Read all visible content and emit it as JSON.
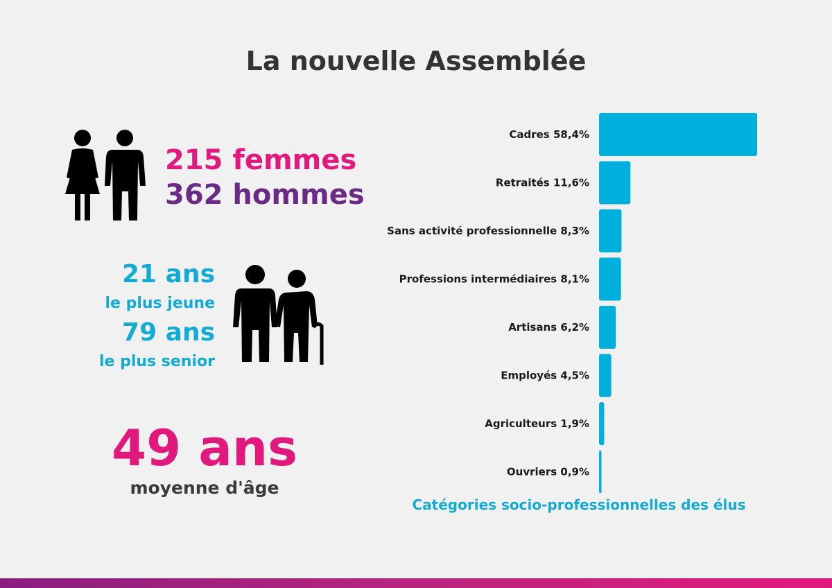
{
  "title": "La nouvelle Assemblée",
  "gender": {
    "women": "215 femmes",
    "men": "362 hommes",
    "icon": "man-woman-icon"
  },
  "age": {
    "youngest_value": "21 ans",
    "youngest_label": "le plus jeune",
    "oldest_value": "79 ans",
    "oldest_label": "le plus senior",
    "icon": "elderly-couple-icon"
  },
  "average_age": {
    "value": "49 ans",
    "label": "moyenne d'âge"
  },
  "colors": {
    "pink": "#e2197d",
    "purple": "#6a2a86",
    "blue": "#12abd3",
    "bar": "#00b0dc"
  },
  "chart_data": {
    "type": "bar",
    "orientation": "horizontal",
    "caption": "Catégories socio-professionnelles des élus",
    "categories": [
      "Cadres 58,4%",
      "Retraités 11,6%",
      "Sans activité professionnelle 8,3%",
      "Professions intermédiaires 8,1%",
      "Artisans 6,2%",
      "Employés 4,5%",
      "Agriculteurs 1,9%",
      "Ouvriers 0,9%"
    ],
    "values": [
      58.4,
      11.6,
      8.3,
      8.1,
      6.2,
      4.5,
      1.9,
      0.9
    ],
    "xlim": [
      0,
      58.4
    ],
    "grid": false,
    "legend": "none"
  }
}
